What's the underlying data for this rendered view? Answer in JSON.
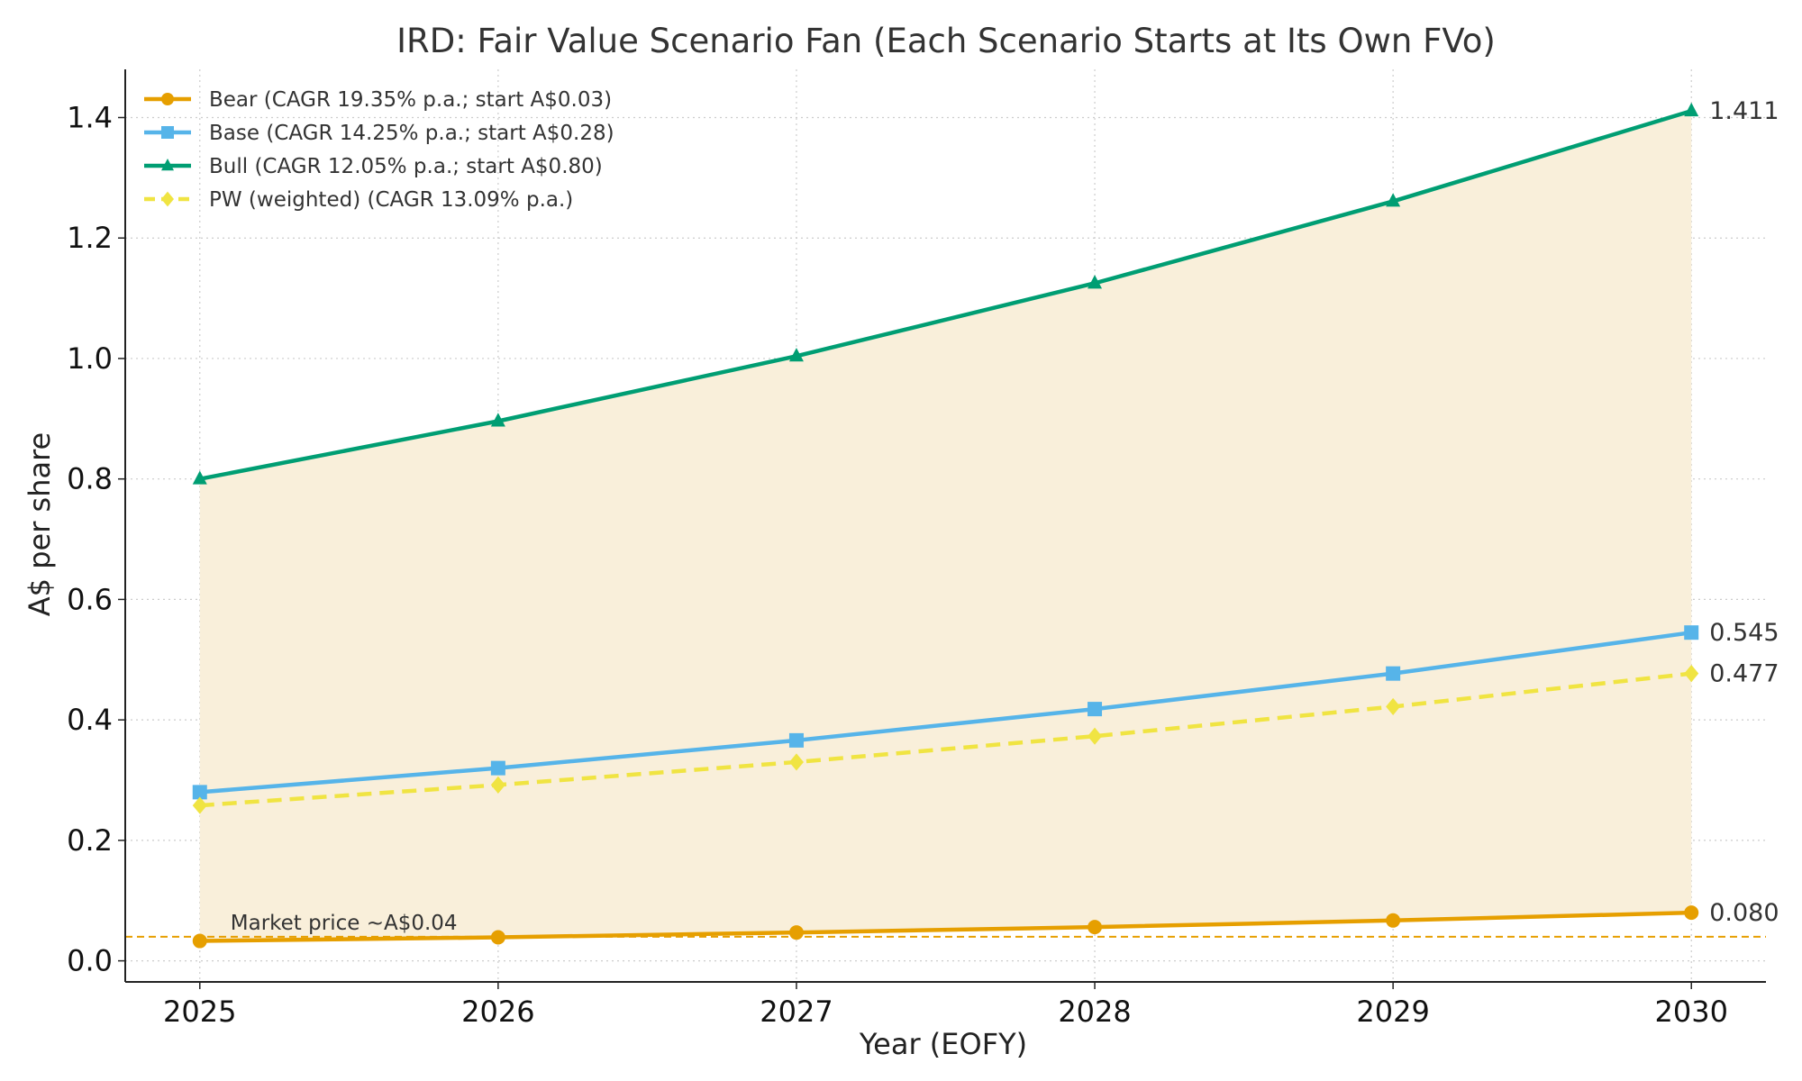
{
  "chart_data": {
    "type": "line",
    "title": "IRD: Fair Value Scenario Fan (Each Scenario Starts at Its Own FVo)",
    "xlabel": "Year (EOFY)",
    "ylabel": "A$ per share",
    "x": [
      2025,
      2026,
      2027,
      2028,
      2029,
      2030
    ],
    "x_tick_labels": [
      "2025",
      "2026",
      "2027",
      "2028",
      "2029",
      "2030"
    ],
    "xlim": [
      2024.75,
      2030.25
    ],
    "ylim": [
      -0.035,
      1.48
    ],
    "y_ticks": [
      0.0,
      0.2,
      0.4,
      0.6,
      0.8,
      1.0,
      1.2,
      1.4
    ],
    "y_tick_labels": [
      "0.0",
      "0.2",
      "0.4",
      "0.6",
      "0.8",
      "1.0",
      "1.2",
      "1.4"
    ],
    "grid": true,
    "legend_position": "top-left",
    "fan_fill_color": "#f9efda",
    "series": [
      {
        "name": "Bear (CAGR 19.35% p.a.; start A$0.03)",
        "color": "#e69f00",
        "marker": "circle",
        "dash": "solid",
        "values": [
          0.033,
          0.039,
          0.047,
          0.056,
          0.067,
          0.08
        ],
        "end_label": "0.080"
      },
      {
        "name": "Base (CAGR 14.25% p.a.; start A$0.28)",
        "color": "#56b4e9",
        "marker": "square",
        "dash": "solid",
        "values": [
          0.28,
          0.32,
          0.366,
          0.418,
          0.477,
          0.545
        ],
        "end_label": "0.545"
      },
      {
        "name": "Bull (CAGR 12.05% p.a.; start A$0.80)",
        "color": "#009e73",
        "marker": "triangle",
        "dash": "solid",
        "values": [
          0.8,
          0.896,
          1.004,
          1.125,
          1.261,
          1.411
        ],
        "end_label": "1.411"
      },
      {
        "name": "PW (weighted) (CAGR 13.09% p.a.)",
        "color": "#f0e442",
        "marker": "diamond",
        "dash": "dashed",
        "values": [
          0.258,
          0.292,
          0.33,
          0.373,
          0.422,
          0.477
        ],
        "end_label": "0.477"
      }
    ],
    "reference_line": {
      "value": 0.04,
      "label": "Market price ~A$0.04",
      "color": "#e69f00"
    }
  }
}
